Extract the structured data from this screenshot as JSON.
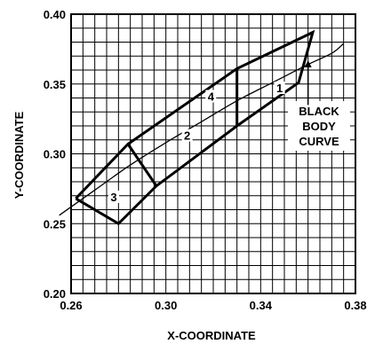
{
  "chart_data": {
    "type": "line",
    "xlabel": "X-COORDINATE",
    "ylabel": "Y-COORDINATE",
    "xlim": [
      0.26,
      0.38
    ],
    "ylim": [
      0.2,
      0.4
    ],
    "x_ticks": [
      "0.26",
      "0.30",
      "0.34",
      "0.38"
    ],
    "y_ticks": [
      "0.20",
      "0.25",
      "0.30",
      "0.35",
      "0.40"
    ],
    "grid": true,
    "grid_step": {
      "x": 0.005,
      "y": 0.01
    },
    "black_body_curve": {
      "label": [
        "BLACK",
        "BODY",
        "CURVE"
      ],
      "points": [
        [
          0.255,
          0.256
        ],
        [
          0.27,
          0.274
        ],
        [
          0.285,
          0.292
        ],
        [
          0.3,
          0.308
        ],
        [
          0.315,
          0.323
        ],
        [
          0.33,
          0.338
        ],
        [
          0.345,
          0.351
        ],
        [
          0.36,
          0.364
        ],
        [
          0.37,
          0.372
        ],
        [
          0.375,
          0.379
        ]
      ]
    },
    "region_boundary": [
      [
        0.262,
        0.268
      ],
      [
        0.284,
        0.307
      ],
      [
        0.33,
        0.361
      ],
      [
        0.362,
        0.387
      ],
      [
        0.356,
        0.351
      ],
      [
        0.33,
        0.32
      ],
      [
        0.296,
        0.277
      ],
      [
        0.28,
        0.25
      ],
      [
        0.262,
        0.268
      ]
    ],
    "dividers": [
      [
        [
          0.284,
          0.307
        ],
        [
          0.296,
          0.277
        ]
      ],
      [
        [
          0.33,
          0.361
        ],
        [
          0.33,
          0.32
        ]
      ]
    ],
    "region_labels": [
      {
        "text": "1",
        "x": 0.348,
        "y": 0.346
      },
      {
        "text": "2",
        "x": 0.309,
        "y": 0.312
      },
      {
        "text": "3",
        "x": 0.278,
        "y": 0.268
      },
      {
        "text": "4",
        "x": 0.319,
        "y": 0.34
      }
    ],
    "arrow": {
      "from": [
        0.36,
        0.335
      ],
      "to": [
        0.36,
        0.367
      ]
    }
  }
}
